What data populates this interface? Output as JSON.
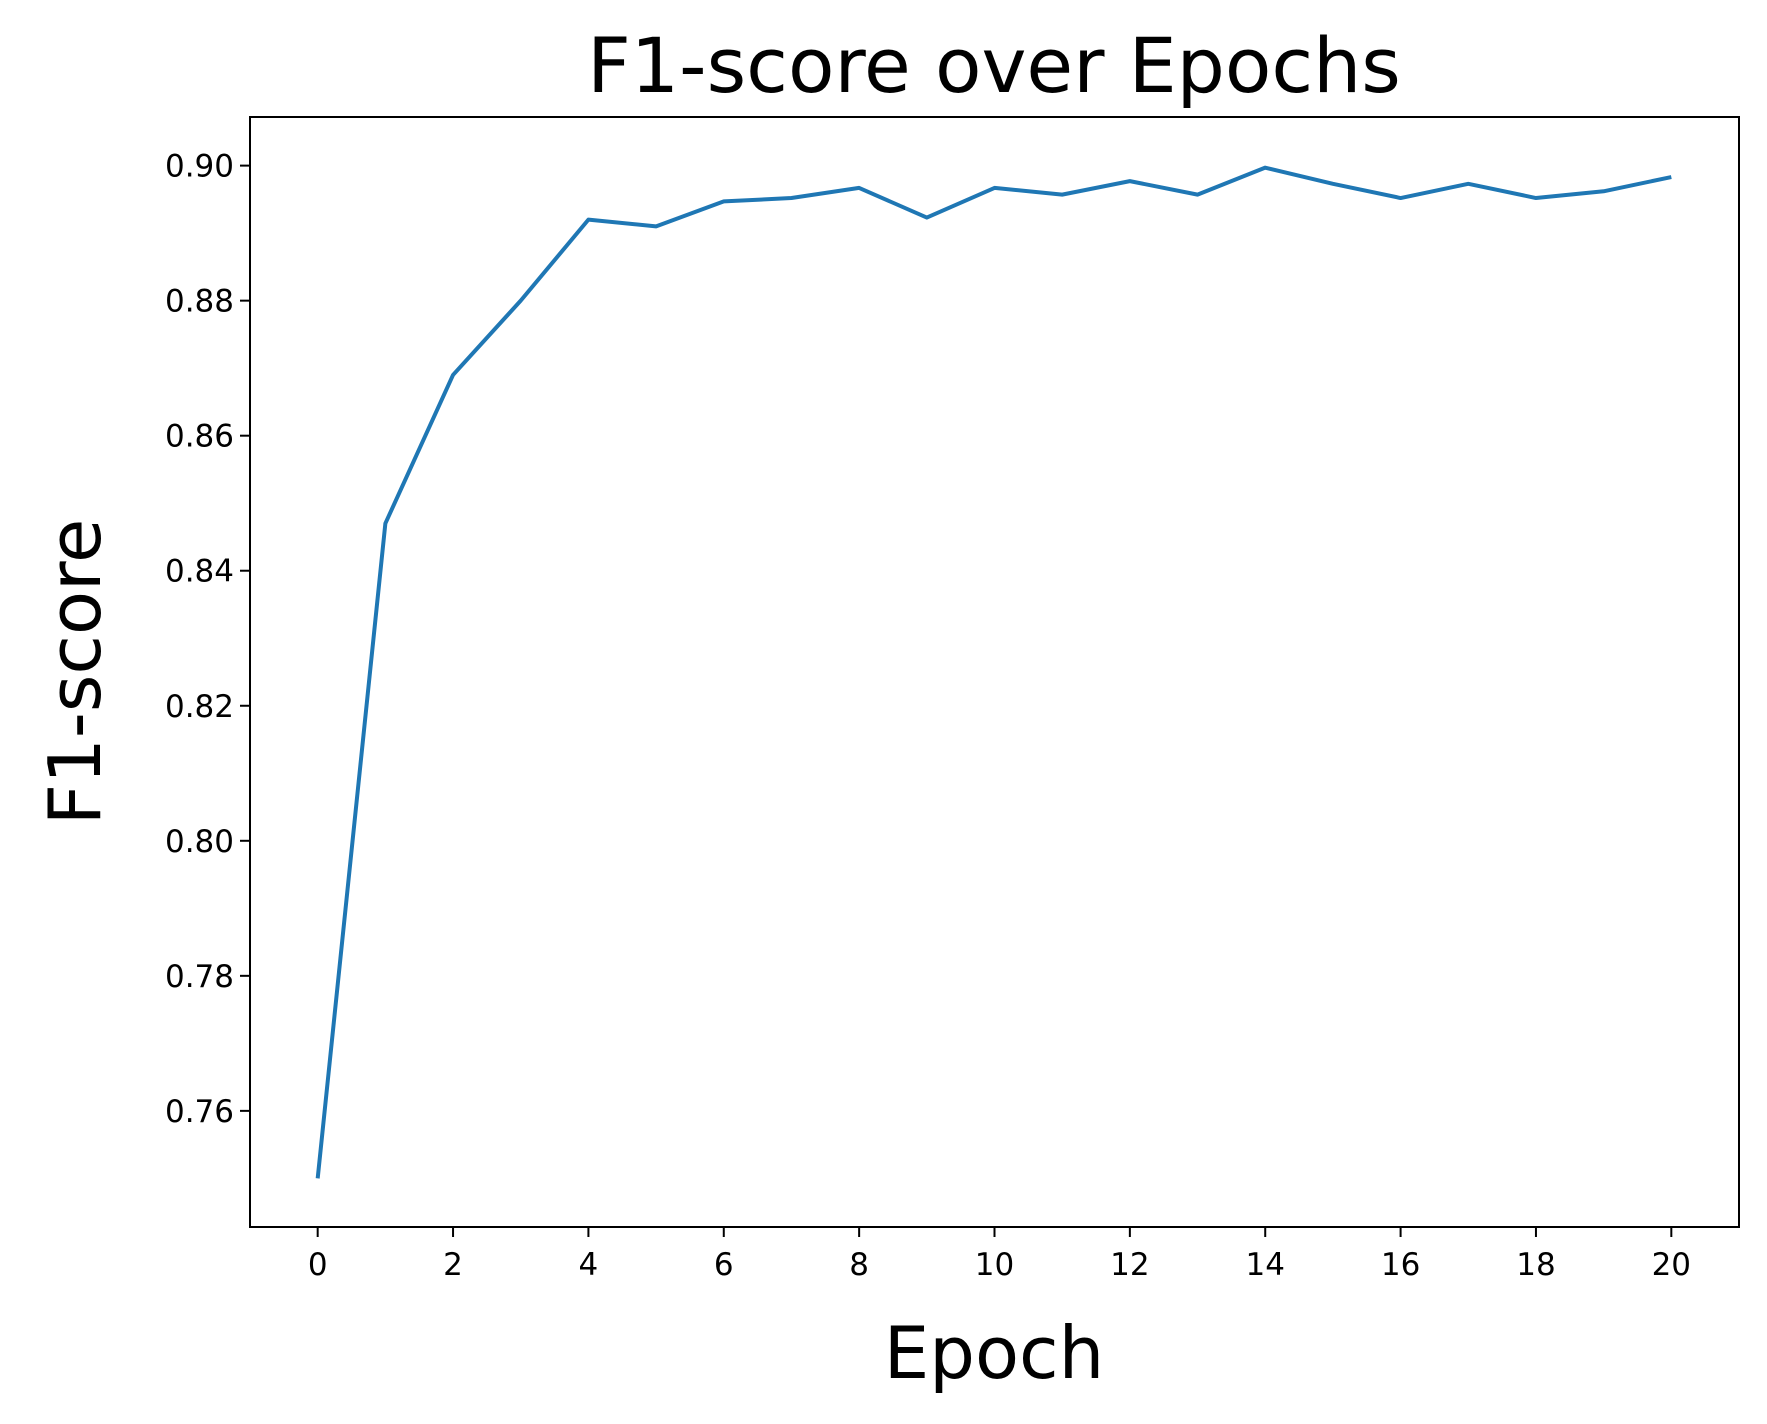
{
  "chart_data": {
    "type": "line",
    "title": "F1-score over Epochs",
    "x_label": "Epoch",
    "y_label": "F1-score",
    "x": [
      0,
      1,
      2,
      3,
      4,
      5,
      6,
      7,
      8,
      9,
      10,
      11,
      12,
      13,
      14,
      15,
      16,
      17,
      18,
      19,
      20
    ],
    "series": [
      {
        "name": "F1-score",
        "color": "#1f77b4",
        "values": [
          0.75,
          0.847,
          0.869,
          0.88,
          0.892,
          0.891,
          0.8947,
          0.8952,
          0.8967,
          0.8923,
          0.8967,
          0.8957,
          0.8977,
          0.8957,
          0.8997,
          0.8973,
          0.8952,
          0.8973,
          0.8952,
          0.8962,
          0.8983
        ]
      }
    ],
    "xlim": [
      -1,
      21
    ],
    "xticks": [
      0,
      2,
      4,
      6,
      8,
      10,
      12,
      14,
      16,
      18,
      20
    ],
    "ylim": [
      0.7428,
      0.9072
    ],
    "yticks": [
      0.76,
      0.78,
      {
        "value": 0.8,
        "label": "0.80"
      },
      0.82,
      0.84,
      0.86,
      0.88,
      {
        "value": 0.9,
        "label": "0.90"
      }
    ],
    "grid": false
  }
}
